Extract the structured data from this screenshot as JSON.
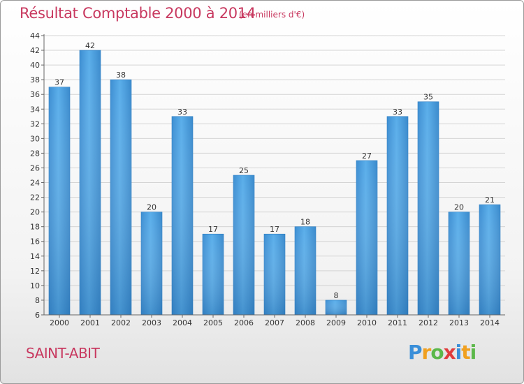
{
  "chart_data": {
    "type": "bar",
    "title": "Résultat Comptable 2000 à 2014",
    "subtitle": "(en milliers d'€)",
    "categories": [
      "2000",
      "2001",
      "2002",
      "2003",
      "2004",
      "2005",
      "2006",
      "2007",
      "2008",
      "2009",
      "2010",
      "2011",
      "2012",
      "2013",
      "2014"
    ],
    "values": [
      37,
      42,
      38,
      20,
      33,
      17,
      25,
      17,
      18,
      8,
      27,
      33,
      35,
      20,
      21
    ],
    "xlabel": "",
    "ylabel": "",
    "ylim": [
      6,
      44
    ],
    "yticks": [
      6,
      8,
      10,
      12,
      14,
      16,
      18,
      20,
      22,
      24,
      26,
      28,
      30,
      32,
      34,
      36,
      38,
      40,
      42,
      44
    ],
    "grid": true,
    "bar_color": "#4a9fde"
  },
  "location": "SAINT-ABIT",
  "logo": {
    "letters": [
      "P",
      "r",
      "o",
      "x",
      "i",
      "t",
      "i"
    ],
    "colors": [
      "#3a8fd9",
      "#f0a020",
      "#5cb84a",
      "#e03c3c",
      "#3a8fd9",
      "#f0a020",
      "#5cb84a"
    ]
  }
}
